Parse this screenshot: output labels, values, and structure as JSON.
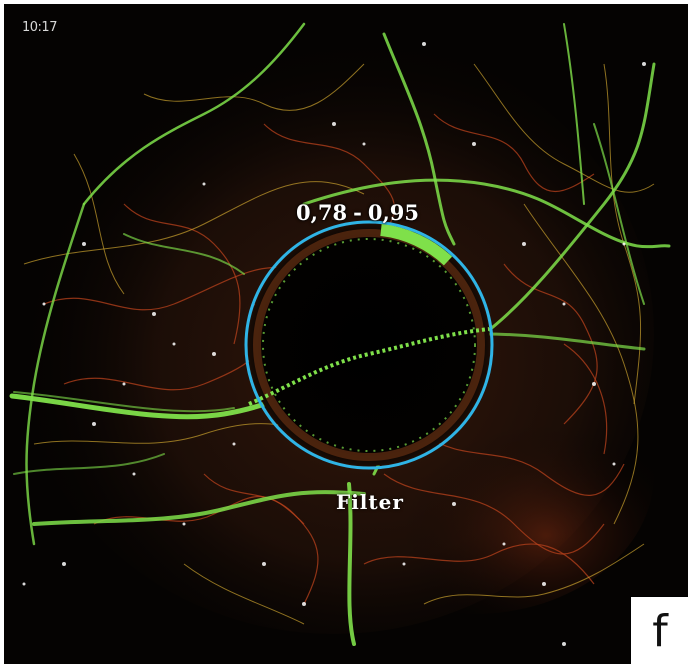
{
  "clock": {
    "time": "10:17"
  },
  "lens": {
    "range_low": "0,78",
    "range_separator": "-",
    "range_high": "0,95",
    "label": "Filter",
    "ring_color": "#2fb4e6"
  },
  "panel_label": "f",
  "colors": {
    "background": "#050302",
    "trails_selected": "#7fe04a",
    "trails_mid": "#c8c23a",
    "trails_low": "#d0451f",
    "hotspots": "#ffffff"
  }
}
